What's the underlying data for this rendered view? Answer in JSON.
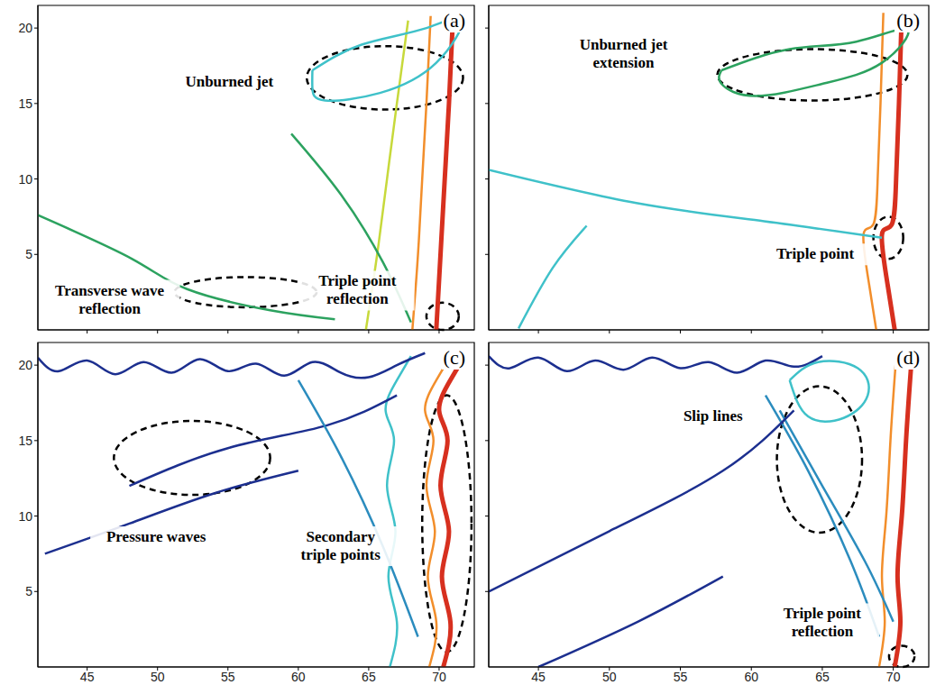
{
  "chart_data": [
    {
      "type": "line",
      "label": "(a)",
      "xlim": [
        41.5,
        72.5
      ],
      "ylim": [
        0,
        21.5
      ],
      "xticks": [
        45,
        50,
        55,
        60,
        65,
        70
      ],
      "yticks": [
        5,
        10,
        15,
        20
      ],
      "tick_labels": "y",
      "series": [
        {
          "color": "#c7d93b",
          "x": [
            64.8,
            65.6,
            66.3,
            67.0,
            67.8
          ],
          "values": [
            0,
            5,
            10,
            15,
            20.5
          ]
        },
        {
          "color": "#f28e2b",
          "x": [
            68.1,
            68.5,
            68.8,
            69.1,
            69.4
          ],
          "values": [
            0,
            5,
            10,
            15,
            20.8
          ]
        },
        {
          "color": "#d7301f",
          "x": [
            69.8,
            70.1,
            70.4,
            70.7,
            71.0
          ],
          "values": [
            0,
            5,
            10,
            15,
            21
          ]
        },
        {
          "color": "#2ca25f",
          "x": [
            41.5,
            48.2,
            52.1,
            58.0,
            62.6
          ],
          "values": [
            7.6,
            4.7,
            2.7,
            1.3,
            0.7
          ]
        },
        {
          "color": "#2ca25f",
          "x": [
            59.5,
            63.0,
            66.0,
            68.0
          ],
          "values": [
            13,
            9,
            4.5,
            0.5
          ]
        },
        {
          "color": "#3fc1c9",
          "x": [
            61.0,
            64.5,
            69.1,
            71.7,
            69.8,
            65.8,
            61.9,
            61.0,
            61.0
          ],
          "values": [
            17.2,
            18.9,
            20.0,
            20.6,
            17.7,
            15.7,
            15.2,
            16.0,
            17.2
          ]
        }
      ],
      "annotations": [
        {
          "text": "Unburned jet",
          "x": 55.1,
          "y": 16.4
        },
        {
          "text": "Triple point reflection",
          "x": 64.2,
          "y": 2.6
        },
        {
          "text": "Transverse wave reflection",
          "x": 46.6,
          "y": 2.0
        }
      ],
      "marked_regions": [
        {
          "x1": 60.6,
          "x2": 71.7,
          "y1": 14.6,
          "y2": 18.8
        },
        {
          "x1": 51.2,
          "x2": 61.3,
          "y1": 1.5,
          "y2": 3.5
        },
        {
          "x1": 69.1,
          "x2": 71.4,
          "y1": 0,
          "y2": 1.8
        }
      ]
    },
    {
      "type": "line",
      "label": "(b)",
      "xlim": [
        41.5,
        72.5
      ],
      "ylim": [
        0,
        21.5
      ],
      "xticks": [
        45,
        50,
        55,
        60,
        65,
        70
      ],
      "yticks": [
        5,
        10,
        15,
        20
      ],
      "tick_labels": false,
      "series": [
        {
          "color": "#f28e2b",
          "x": [
            69.3,
            69.1,
            68.9,
            68.6,
            67.9,
            68.3,
            68.8
          ],
          "values": [
            21,
            15,
            10,
            7,
            6.3,
            3,
            0
          ]
        },
        {
          "color": "#d7301f",
          "x": [
            70.6,
            70.4,
            70.2,
            69.9,
            69.2,
            69.6,
            70.1
          ],
          "values": [
            21,
            15,
            10,
            7,
            6.3,
            3,
            0
          ]
        },
        {
          "color": "#3fc1c9",
          "x": [
            41.5,
            51.9,
            60.9,
            69.2
          ],
          "values": [
            10.6,
            8.4,
            7.2,
            6.1
          ]
        },
        {
          "color": "#3fc1c9",
          "x": [
            43.6,
            46.0,
            48.4
          ],
          "values": [
            0.1,
            4.1,
            6.9
          ]
        },
        {
          "color": "#2ca25f",
          "x": [
            57.9,
            62.7,
            67.4,
            71.0,
            69.2,
            65.0,
            60.3,
            57.9,
            57.9
          ],
          "values": [
            17.2,
            18.6,
            19.1,
            19.9,
            17.7,
            16.3,
            15.5,
            16.3,
            17.2
          ]
        }
      ],
      "annotations": [
        {
          "text": "Unburned jet extension",
          "x": 51.0,
          "y": 18.3
        },
        {
          "text": "Triple point",
          "x": 64.5,
          "y": 5.0
        }
      ],
      "marked_regions": [
        {
          "x1": 57.6,
          "x2": 71.0,
          "y1": 15.2,
          "y2": 18.6
        },
        {
          "x1": 68.6,
          "x2": 70.7,
          "y1": 4.7,
          "y2": 7.5
        }
      ]
    },
    {
      "type": "line",
      "label": "(c)",
      "xlim": [
        41.5,
        72.5
      ],
      "ylim": [
        0,
        21.5
      ],
      "xticks": [
        45,
        50,
        55,
        60,
        65,
        70
      ],
      "yticks": [
        5,
        10,
        15,
        20
      ],
      "tick_labels": true,
      "series": [
        {
          "color": "#3fc1c9",
          "x": [
            66.5,
            67.0,
            66.4,
            66.9,
            66.3,
            66.8,
            66.2,
            67.0,
            68.0
          ],
          "values": [
            0,
            3,
            6,
            9,
            12,
            15,
            17,
            19,
            20.6
          ]
        },
        {
          "color": "#f28e2b",
          "x": [
            69.3,
            69.8,
            69.2,
            69.7,
            69.1,
            69.6,
            69.0,
            69.8,
            70.8
          ],
          "values": [
            0,
            3,
            6,
            9,
            12,
            15,
            17,
            19,
            20.6
          ]
        },
        {
          "color": "#d7301f",
          "x": [
            70.3,
            70.8,
            70.2,
            70.7,
            70.1,
            70.6,
            70.0,
            70.8,
            71.8
          ],
          "values": [
            0,
            3,
            6,
            9,
            12,
            15,
            17,
            19,
            20.6
          ]
        },
        {
          "color": "#1c2f8f",
          "x": [
            41.5,
            43,
            45,
            47,
            49,
            51,
            53,
            55,
            57,
            59,
            61,
            63,
            65,
            67,
            69
          ],
          "values": [
            20.5,
            19.6,
            20.3,
            19.4,
            20.2,
            19.5,
            20.4,
            19.6,
            20.1,
            19.3,
            20.2,
            19.5,
            19.2,
            20.0,
            20.8
          ]
        },
        {
          "color": "#1c2f8f",
          "x": [
            42,
            48,
            54,
            60
          ],
          "values": [
            7.5,
            9.5,
            11.5,
            13
          ]
        },
        {
          "color": "#1c2f8f",
          "x": [
            48,
            55,
            62,
            67
          ],
          "values": [
            12,
            14.5,
            16,
            18
          ]
        },
        {
          "color": "#2b8cbe",
          "x": [
            60,
            63,
            66,
            68.5
          ],
          "values": [
            19,
            14,
            8,
            2
          ]
        }
      ],
      "annotations": [
        {
          "text": "Pressure waves",
          "x": 49.9,
          "y": 8.6
        },
        {
          "text": "Secondary triple points",
          "x": 63.0,
          "y": 8.0
        }
      ],
      "marked_regions": [
        {
          "x1": 46.9,
          "x2": 58.0,
          "y1": 11.4,
          "y2": 16.3
        },
        {
          "x1": 68.8,
          "x2": 72.3,
          "y1": 1,
          "y2": 18
        }
      ]
    },
    {
      "type": "line",
      "label": "(d)",
      "xlim": [
        41.5,
        72.5
      ],
      "ylim": [
        0,
        21.5
      ],
      "xticks": [
        45,
        50,
        55,
        60,
        65,
        70
      ],
      "yticks": [
        5,
        10,
        15,
        20
      ],
      "tick_labels": "x",
      "series": [
        {
          "color": "#f28e2b",
          "x": [
            69.0,
            69.4,
            69.2,
            69.5,
            69.8,
            70.2
          ],
          "values": [
            0,
            3,
            6,
            10,
            15,
            20.5
          ]
        },
        {
          "color": "#d7301f",
          "x": [
            70.1,
            70.5,
            70.3,
            70.6,
            70.9,
            71.3
          ],
          "values": [
            0,
            3,
            6,
            10,
            15,
            20.5
          ]
        },
        {
          "color": "#1c2f8f",
          "x": [
            41.5,
            43,
            45,
            47,
            49,
            51,
            53,
            55,
            57,
            59,
            61,
            63,
            65
          ],
          "values": [
            20.6,
            19.8,
            20.5,
            19.6,
            20.3,
            19.7,
            20.5,
            19.8,
            20.2,
            19.5,
            20.3,
            19.9,
            20.6
          ]
        },
        {
          "color": "#3fc1c9",
          "x": [
            62.7,
            64.7,
            67.5,
            68.2,
            66.5,
            64.0,
            62.7
          ],
          "values": [
            19,
            20.2,
            19.8,
            18,
            16.5,
            16.6,
            19
          ]
        },
        {
          "color": "#2b8cbe",
          "x": [
            61,
            64,
            67,
            69
          ],
          "values": [
            18,
            13,
            7,
            2
          ]
        },
        {
          "color": "#2b8cbe",
          "x": [
            62,
            65,
            68,
            70
          ],
          "values": [
            17,
            12,
            7,
            3
          ]
        },
        {
          "color": "#1c2f8f",
          "x": [
            41.5,
            50,
            58,
            63
          ],
          "values": [
            5,
            9,
            13,
            17
          ]
        },
        {
          "color": "#1c2f8f",
          "x": [
            45,
            52,
            58
          ],
          "values": [
            0,
            3,
            6
          ]
        }
      ],
      "annotations": [
        {
          "text": "Slip lines",
          "x": 57.3,
          "y": 16.6
        },
        {
          "text": "Triple point reflection",
          "x": 65.0,
          "y": 2.9
        }
      ],
      "marked_regions": [
        {
          "x1": 61.8,
          "x2": 67.8,
          "y1": 8.9,
          "y2": 18.6
        },
        {
          "x1": 69.7,
          "x2": 71.5,
          "y1": 0,
          "y2": 1.4
        }
      ]
    }
  ]
}
